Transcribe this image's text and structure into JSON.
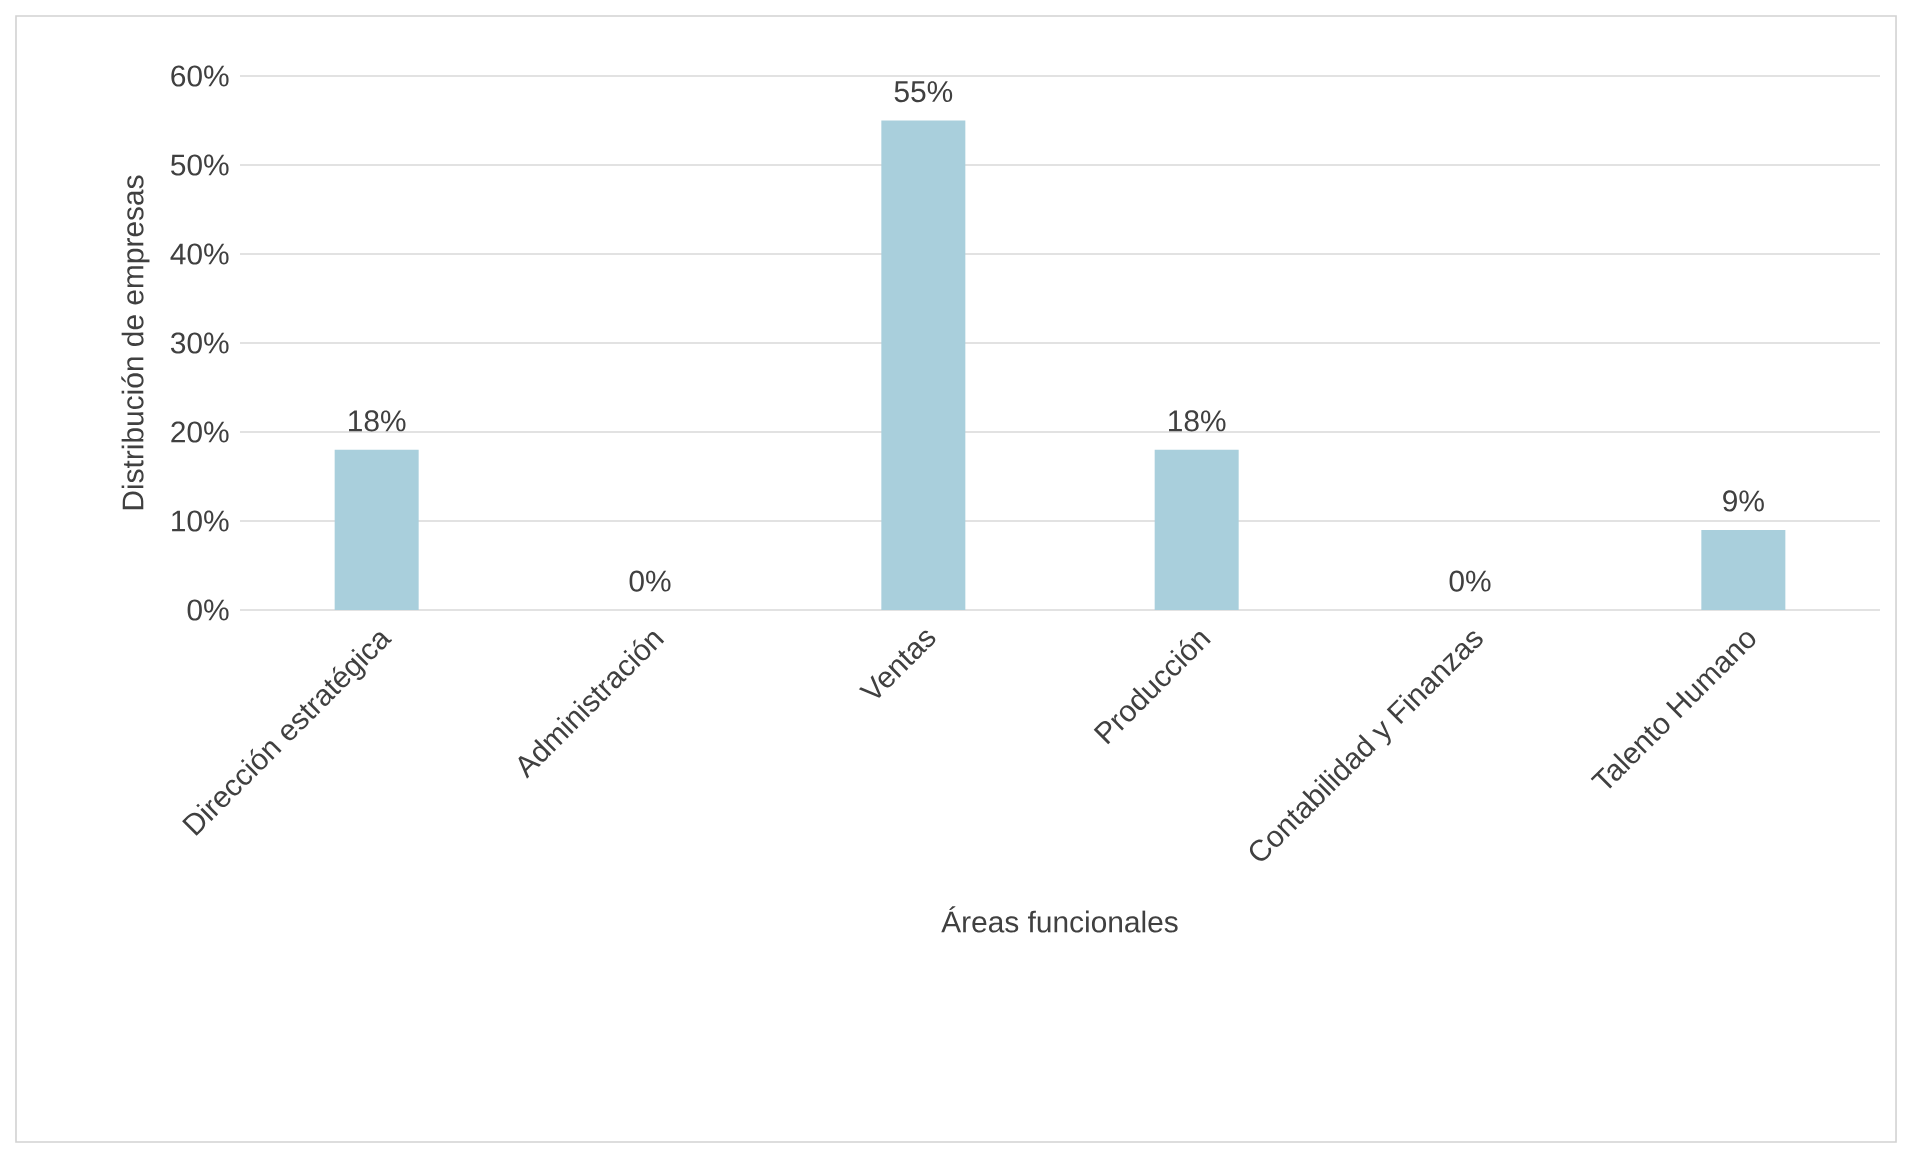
{
  "chart_data": {
    "type": "bar",
    "xlabel": "Áreas funcionales",
    "ylabel": "Distribución de empresas",
    "categories": [
      "Dirección estratégica",
      "Administración",
      "Ventas",
      "Producción",
      "Contabilidad y Finanzas",
      "Talento Humano"
    ],
    "values": [
      18,
      0,
      55,
      18,
      0,
      9
    ],
    "value_labels": [
      "18%",
      "0%",
      "55%",
      "18%",
      "0%",
      "9%"
    ],
    "color": "#a9cfdc",
    "ylim": [
      0,
      60
    ],
    "yticks": [
      {
        "value": 0,
        "label": "0%"
      },
      {
        "value": 10,
        "label": "10%"
      },
      {
        "value": 20,
        "label": "20%"
      },
      {
        "value": 30,
        "label": "30%"
      },
      {
        "value": 40,
        "label": "40%"
      },
      {
        "value": 50,
        "label": "50%"
      },
      {
        "value": 60,
        "label": "60%"
      }
    ],
    "grid": "y"
  }
}
